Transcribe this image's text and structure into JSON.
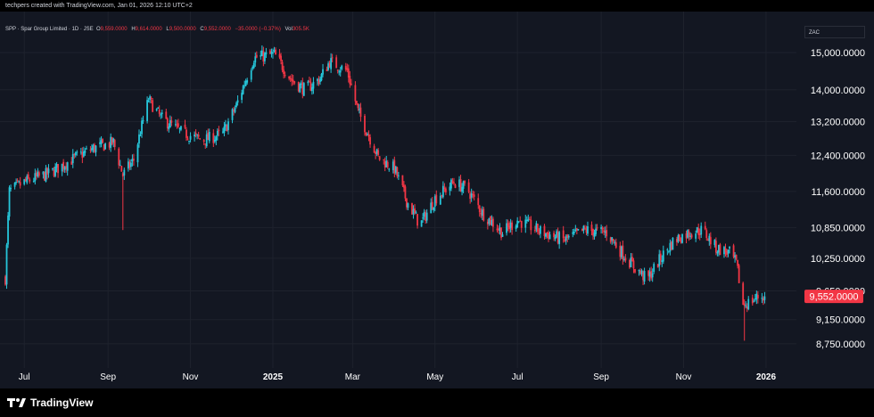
{
  "header": {
    "attribution": "techpers created with TradingView.com, Jan 01, 2026 12:10 UTC+2"
  },
  "legend": {
    "symbol": "SPP · Spar Group Limited · 1D · JSE",
    "open_label": "O",
    "open": "9,559.0000",
    "high_label": "H",
    "high": "9,614.0000",
    "low_label": "L",
    "low": "9,500.0000",
    "close_label": "C",
    "close": "9,552.0000",
    "change": "−35.0000 (−0.37%)",
    "volume_label": "Vol",
    "volume": "305.5K"
  },
  "currency": "ZAC",
  "footer": {
    "brand": "TradingView"
  },
  "colors": {
    "up": "#26c6da",
    "down": "#f23645",
    "background": "#131722",
    "grid": "#1e222d"
  },
  "chart_data": {
    "type": "candlestick",
    "title": "SPP · Spar Group Limited · 1D · JSE",
    "y_scale": "log",
    "ylim": [
      8450,
      15400
    ],
    "y_ticks": [
      "15,000.0000",
      "14,000.0000",
      "13,200.0000",
      "12,400.0000",
      "11,600.0000",
      "10,850.0000",
      "10,250.0000",
      "9,650.0000",
      "9,150.0000",
      "8,750.0000"
    ],
    "y_tick_values": [
      15000,
      14000,
      13200,
      12400,
      11600,
      10850,
      10250,
      9650,
      9150,
      8750
    ],
    "x_ticks": [
      {
        "label": "Jul",
        "date": "2024-07-01"
      },
      {
        "label": "Sep",
        "date": "2024-09-01"
      },
      {
        "label": "Nov",
        "date": "2024-11-01"
      },
      {
        "label": "2025",
        "date": "2025-01-01"
      },
      {
        "label": "Mar",
        "date": "2025-03-01"
      },
      {
        "label": "May",
        "date": "2025-05-01"
      },
      {
        "label": "Jul",
        "date": "2025-07-01"
      },
      {
        "label": "Sep",
        "date": "2025-09-01"
      },
      {
        "label": "Nov",
        "date": "2025-11-01"
      },
      {
        "label": "2026",
        "date": "2026-01-01"
      }
    ],
    "path_points": [
      {
        "date": "2024-06-17",
        "close": 9880
      },
      {
        "date": "2024-06-20",
        "close": 11600
      },
      {
        "date": "2024-07-01",
        "close": 11800
      },
      {
        "date": "2024-07-20",
        "close": 12000
      },
      {
        "date": "2024-08-05",
        "close": 12300
      },
      {
        "date": "2024-08-20",
        "close": 12550
      },
      {
        "date": "2024-09-05",
        "close": 12700
      },
      {
        "date": "2024-09-12",
        "close": 11950
      },
      {
        "date": "2024-09-20",
        "close": 12300
      },
      {
        "date": "2024-10-01",
        "close": 13750
      },
      {
        "date": "2024-10-10",
        "close": 13300
      },
      {
        "date": "2024-10-25",
        "close": 12950
      },
      {
        "date": "2024-11-10",
        "close": 12750
      },
      {
        "date": "2024-11-25",
        "close": 12900
      },
      {
        "date": "2024-12-05",
        "close": 13600
      },
      {
        "date": "2024-12-18",
        "close": 14850
      },
      {
        "date": "2025-01-02",
        "close": 14950
      },
      {
        "date": "2025-01-15",
        "close": 14250
      },
      {
        "date": "2025-01-25",
        "close": 14000
      },
      {
        "date": "2025-02-05",
        "close": 14300
      },
      {
        "date": "2025-02-12",
        "close": 14750
      },
      {
        "date": "2025-02-25",
        "close": 14500
      },
      {
        "date": "2025-03-05",
        "close": 13450
      },
      {
        "date": "2025-03-20",
        "close": 12350
      },
      {
        "date": "2025-04-01",
        "close": 12100
      },
      {
        "date": "2025-04-10",
        "close": 11400
      },
      {
        "date": "2025-04-20",
        "close": 10900
      },
      {
        "date": "2025-05-01",
        "close": 11450
      },
      {
        "date": "2025-05-15",
        "close": 11800
      },
      {
        "date": "2025-05-25",
        "close": 11650
      },
      {
        "date": "2025-06-05",
        "close": 11150
      },
      {
        "date": "2025-06-20",
        "close": 10750
      },
      {
        "date": "2025-07-01",
        "close": 11000
      },
      {
        "date": "2025-07-20",
        "close": 10750
      },
      {
        "date": "2025-08-05",
        "close": 10600
      },
      {
        "date": "2025-08-20",
        "close": 10800
      },
      {
        "date": "2025-09-05",
        "close": 10750
      },
      {
        "date": "2025-09-15",
        "close": 10400
      },
      {
        "date": "2025-09-25",
        "close": 10100
      },
      {
        "date": "2025-10-05",
        "close": 9850
      },
      {
        "date": "2025-10-15",
        "close": 10250
      },
      {
        "date": "2025-10-25",
        "close": 10600
      },
      {
        "date": "2025-11-05",
        "close": 10750
      },
      {
        "date": "2025-11-15",
        "close": 10800
      },
      {
        "date": "2025-11-25",
        "close": 10450
      },
      {
        "date": "2025-12-05",
        "close": 10350
      },
      {
        "date": "2025-12-10",
        "close": 10150
      },
      {
        "date": "2025-12-15",
        "close": 9400
      },
      {
        "date": "2025-12-20",
        "close": 9450
      },
      {
        "date": "2025-12-27",
        "close": 9560
      },
      {
        "date": "2025-12-31",
        "close": 9552
      }
    ],
    "notable_lows": [
      {
        "date": "2024-09-12",
        "low": 10800
      },
      {
        "date": "2025-04-20",
        "low": 10300
      },
      {
        "date": "2025-12-16",
        "low": 8800
      }
    ],
    "last_price": 9552,
    "last_price_label": "9,552.0000",
    "grid": true
  }
}
